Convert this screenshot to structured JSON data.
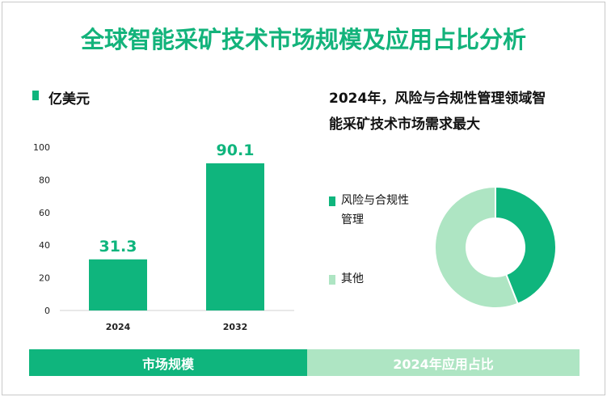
{
  "title": "全球智能采矿技术市场规模及应用占比分析",
  "colors": {
    "primary": "#0fb57d",
    "light": "#aee5c3"
  },
  "chart_data": [
    {
      "type": "bar",
      "unit_label": "亿美元",
      "categories": [
        "2024",
        "2032"
      ],
      "values": [
        31.3,
        90.1
      ],
      "value_labels": [
        "31.3",
        "90.1"
      ],
      "ylim": [
        0,
        100
      ],
      "yticks": [
        "0",
        "20",
        "40",
        "60",
        "80",
        "100"
      ],
      "grid": false
    },
    {
      "type": "pie",
      "title": "2024年，风险与合规性管理领域智能采矿技术市场需求最大",
      "title_line1": "2024年，风险与合规性管理领域智",
      "title_line2": "能采矿技术市场需求最大",
      "labels": [
        "风险与合规性管理",
        "其他"
      ],
      "label_lines": [
        [
          "风险与合规性",
          "管理"
        ],
        [
          "其他"
        ]
      ],
      "values": [
        44,
        56
      ]
    }
  ],
  "footer": {
    "left": "市场规模",
    "right": "2024年应用占比"
  }
}
